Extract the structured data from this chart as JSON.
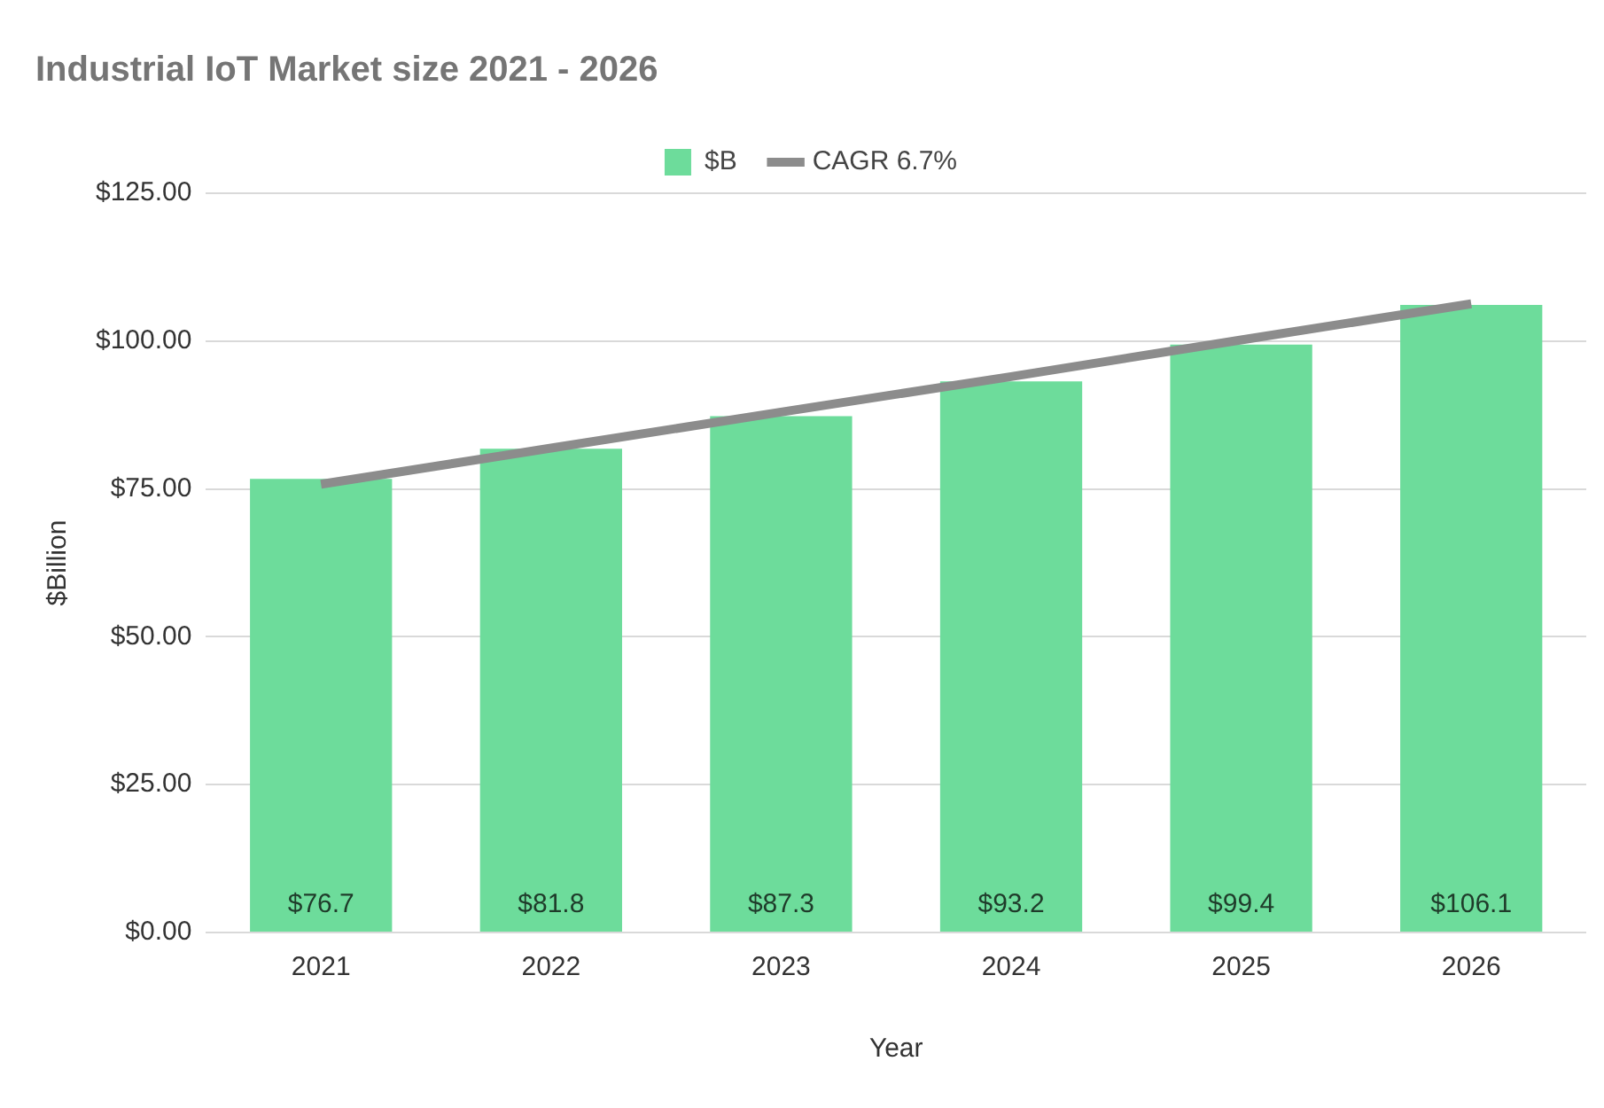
{
  "chart_data": {
    "type": "bar",
    "title": "Industrial IoT Market size 2021 - 2026",
    "xlabel": "Year",
    "ylabel": "$Billion",
    "categories": [
      "2021",
      "2022",
      "2023",
      "2024",
      "2025",
      "2026"
    ],
    "series": [
      {
        "name": "$B",
        "color": "#6ddc9b",
        "values": [
          76.7,
          81.8,
          87.3,
          93.2,
          99.4,
          106.1
        ],
        "value_labels": [
          "$76.7",
          "$81.8",
          "$87.3",
          "$93.2",
          "$99.4",
          "$106.1"
        ]
      },
      {
        "name": "CAGR 6.7%",
        "type": "line",
        "color": "#8c8c8c",
        "values": [
          75.8,
          81.9,
          88,
          94,
          100.2,
          106.3
        ]
      }
    ],
    "ylim": [
      0,
      125
    ],
    "yticks": [
      {
        "value": 0,
        "label": "$0.00"
      },
      {
        "value": 25,
        "label": "$25.00"
      },
      {
        "value": 50,
        "label": "$50.00"
      },
      {
        "value": 75,
        "label": "$75.00"
      },
      {
        "value": 100,
        "label": "$100.00"
      },
      {
        "value": 125,
        "label": "$125.00"
      }
    ],
    "grid": "y",
    "legend": "top",
    "marker": "none"
  }
}
